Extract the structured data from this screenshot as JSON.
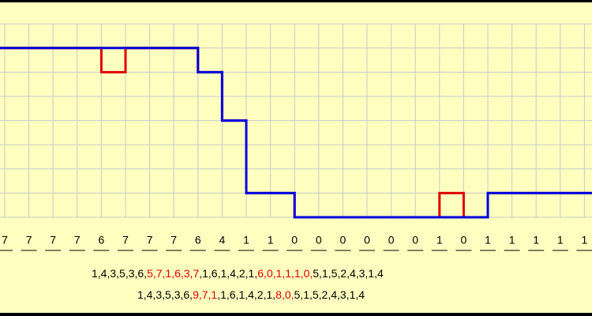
{
  "signal": {
    "received": [
      7,
      7,
      7,
      7,
      6,
      7,
      7,
      7,
      6,
      4,
      1,
      1,
      0,
      0,
      0,
      0,
      0,
      0,
      1,
      0,
      1,
      1,
      1,
      1,
      1
    ],
    "corrected": [
      7,
      7,
      7,
      7,
      7,
      7,
      7,
      7,
      6,
      4,
      1,
      1,
      0,
      0,
      0,
      0,
      0,
      0,
      0,
      0,
      1,
      1,
      1,
      1,
      1
    ],
    "levels": 8
  },
  "sequences": [
    [
      "1,4,3,5,3,6,",
      "5,7,1,6,3,7",
      ",1,6,1,4,2,1,",
      "6,0,1,1,1,0,",
      "5,1,5,2,4,3,1,4"
    ],
    [
      "1,4,3,5,3,6,",
      "9,7,1",
      ",1,6,1,4,2,1,",
      "8,0,",
      "5,1,5,2,4,3,1,4"
    ]
  ]
}
